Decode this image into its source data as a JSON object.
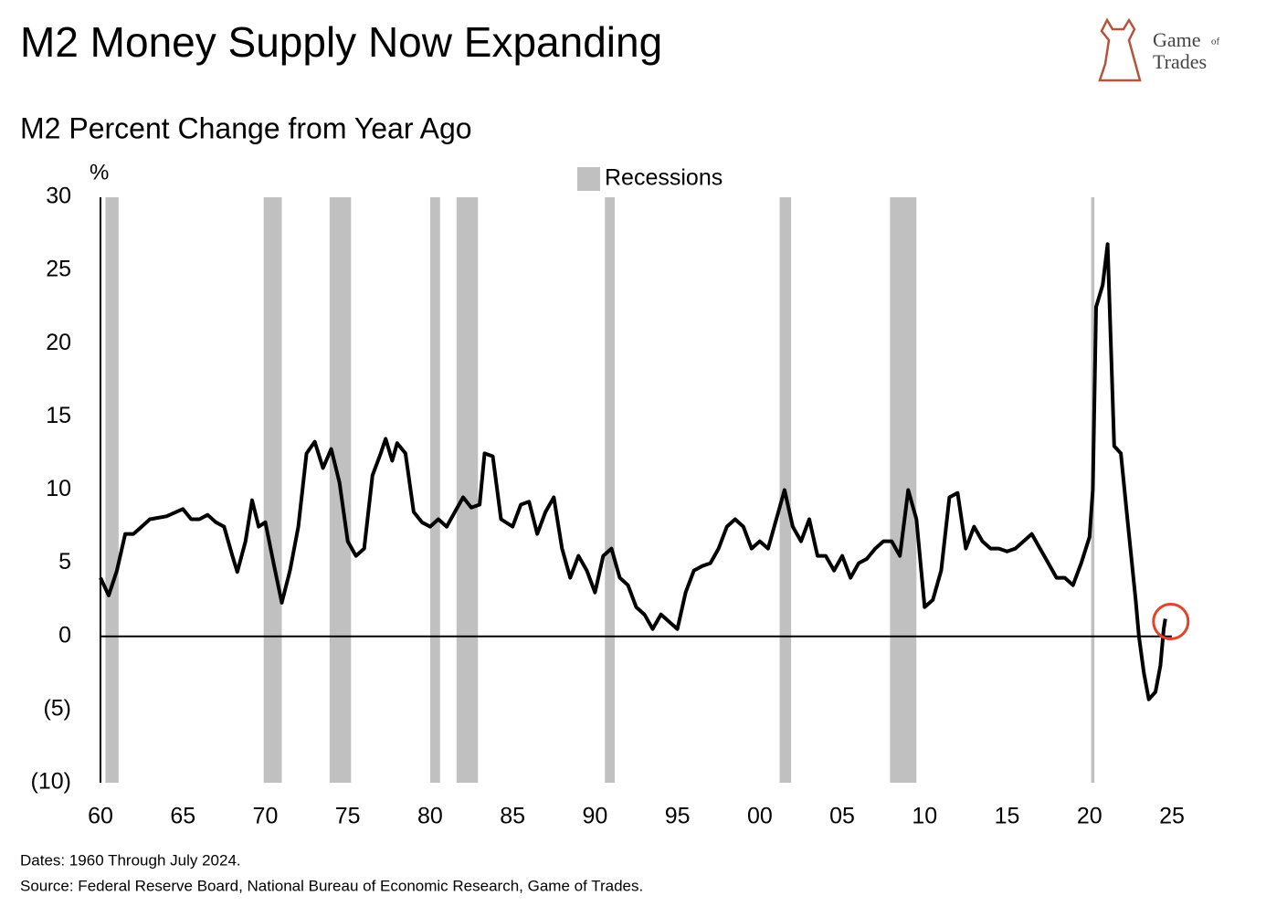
{
  "chart_data": {
    "type": "line",
    "title": "M2 Money Supply Now Expanding",
    "subtitle": "M2 Percent Change from Year Ago",
    "y_unit": "%",
    "logo": {
      "first": "Game",
      "small": "of",
      "second": "Trades"
    },
    "recession_label": "Recessions",
    "recession_color": "#c0c0c0",
    "recessions": [
      [
        1960.3,
        1961.1
      ],
      [
        1969.9,
        1971.0
      ],
      [
        1973.9,
        1975.2
      ],
      [
        1980.0,
        1980.6
      ],
      [
        1981.6,
        1982.9
      ],
      [
        1990.6,
        1991.2
      ],
      [
        2001.2,
        2001.9
      ],
      [
        2007.9,
        2009.5
      ],
      [
        2020.1,
        2020.3
      ]
    ],
    "x": [
      1960.0,
      1960.5,
      1961.0,
      1961.5,
      1962.0,
      1962.5,
      1963.0,
      1964.0,
      1965.0,
      1965.5,
      1966.0,
      1966.5,
      1967.0,
      1967.5,
      1968.0,
      1968.3,
      1968.8,
      1969.2,
      1969.6,
      1970.0,
      1970.5,
      1971.0,
      1971.5,
      1972.0,
      1972.5,
      1973.0,
      1973.5,
      1974.0,
      1974.5,
      1975.0,
      1975.5,
      1976.0,
      1976.5,
      1977.0,
      1977.3,
      1977.7,
      1978.0,
      1978.5,
      1979.0,
      1979.5,
      1980.0,
      1980.5,
      1981.0,
      1981.5,
      1982.0,
      1982.5,
      1983.0,
      1983.3,
      1983.8,
      1984.3,
      1985.0,
      1985.5,
      1986.0,
      1986.5,
      1987.0,
      1987.5,
      1988.0,
      1988.5,
      1989.0,
      1989.5,
      1990.0,
      1990.5,
      1991.0,
      1991.5,
      1992.0,
      1992.5,
      1993.0,
      1993.5,
      1994.0,
      1994.5,
      1995.0,
      1995.5,
      1996.0,
      1996.5,
      1997.0,
      1997.5,
      1998.0,
      1998.5,
      1999.0,
      1999.5,
      2000.0,
      2000.5,
      2001.0,
      2001.5,
      2002.0,
      2002.5,
      2003.0,
      2003.5,
      2004.0,
      2004.5,
      2005.0,
      2005.5,
      2006.0,
      2006.5,
      2007.0,
      2007.5,
      2008.0,
      2008.5,
      2009.0,
      2009.5,
      2010.0,
      2010.5,
      2011.0,
      2011.5,
      2012.0,
      2012.5,
      2013.0,
      2013.5,
      2014.0,
      2014.5,
      2015.0,
      2015.5,
      2016.0,
      2016.5,
      2017.0,
      2017.5,
      2018.0,
      2018.5,
      2019.0,
      2019.5,
      2020.0,
      2020.2,
      2020.4,
      2020.8,
      2021.1,
      2021.5,
      2021.9,
      2022.3,
      2022.8,
      2023.0,
      2023.3,
      2023.6,
      2024.0,
      2024.3,
      2024.5,
      2024.6
    ],
    "values": [
      4.0,
      2.8,
      4.5,
      7.0,
      7.0,
      7.5,
      8.0,
      8.2,
      8.7,
      8.0,
      8.0,
      8.3,
      7.8,
      7.5,
      5.5,
      4.4,
      6.5,
      9.3,
      7.5,
      7.8,
      5.0,
      2.3,
      4.5,
      7.5,
      12.5,
      13.3,
      11.5,
      12.8,
      10.5,
      6.5,
      5.5,
      6.0,
      11.0,
      12.5,
      13.5,
      12.0,
      13.2,
      12.5,
      8.5,
      7.8,
      7.5,
      8.0,
      7.5,
      8.5,
      9.5,
      8.8,
      9.0,
      12.5,
      12.3,
      8.0,
      7.5,
      9.0,
      9.2,
      7.0,
      8.5,
      9.5,
      6.0,
      4.0,
      5.5,
      4.5,
      3.0,
      5.5,
      6.0,
      4.0,
      3.5,
      2.0,
      1.5,
      0.5,
      1.5,
      1.0,
      0.5,
      3.0,
      4.5,
      4.8,
      5.0,
      6.0,
      7.5,
      8.0,
      7.5,
      6.0,
      6.5,
      6.0,
      8.0,
      10.0,
      7.5,
      6.5,
      8.0,
      5.5,
      5.5,
      4.5,
      5.5,
      4.0,
      5.0,
      5.3,
      6.0,
      6.5,
      6.5,
      5.5,
      10.0,
      8.0,
      2.0,
      2.5,
      4.5,
      9.5,
      9.8,
      6.0,
      7.5,
      6.5,
      6.0,
      6.0,
      5.8,
      6.0,
      6.5,
      7.0,
      6.0,
      5.0,
      4.0,
      4.0,
      3.5,
      5.0,
      6.8,
      10.0,
      22.5,
      24.0,
      26.8,
      13.0,
      12.5,
      8.0,
      2.5,
      0.0,
      -2.5,
      -4.3,
      -3.8,
      -2.0,
      0.5,
      1.2
    ],
    "color": "#000000",
    "highlight_color": "#e0452b",
    "xlim": [
      1960,
      2025
    ],
    "xticks": [
      {
        "value": 1960,
        "label": "60"
      },
      {
        "value": 1965,
        "label": "65"
      },
      {
        "value": 1970,
        "label": "70"
      },
      {
        "value": 1975,
        "label": "75"
      },
      {
        "value": 1980,
        "label": "80"
      },
      {
        "value": 1985,
        "label": "85"
      },
      {
        "value": 1990,
        "label": "90"
      },
      {
        "value": 1995,
        "label": "95"
      },
      {
        "value": 2000,
        "label": "00"
      },
      {
        "value": 2005,
        "label": "05"
      },
      {
        "value": 2010,
        "label": "10"
      },
      {
        "value": 2015,
        "label": "15"
      },
      {
        "value": 2020,
        "label": "20"
      },
      {
        "value": 2025,
        "label": "25"
      }
    ],
    "ylim": [
      -10,
      30
    ],
    "yticks": [
      {
        "value": -10,
        "label": "(10)"
      },
      {
        "value": -5,
        "label": "(5)"
      },
      0,
      5,
      10,
      15,
      20,
      25,
      30
    ],
    "notes": [
      "Dates: 1960 Through July 2024.",
      "Source: Federal Reserve Board, National Bureau of Economic Research, Game of Trades."
    ]
  }
}
